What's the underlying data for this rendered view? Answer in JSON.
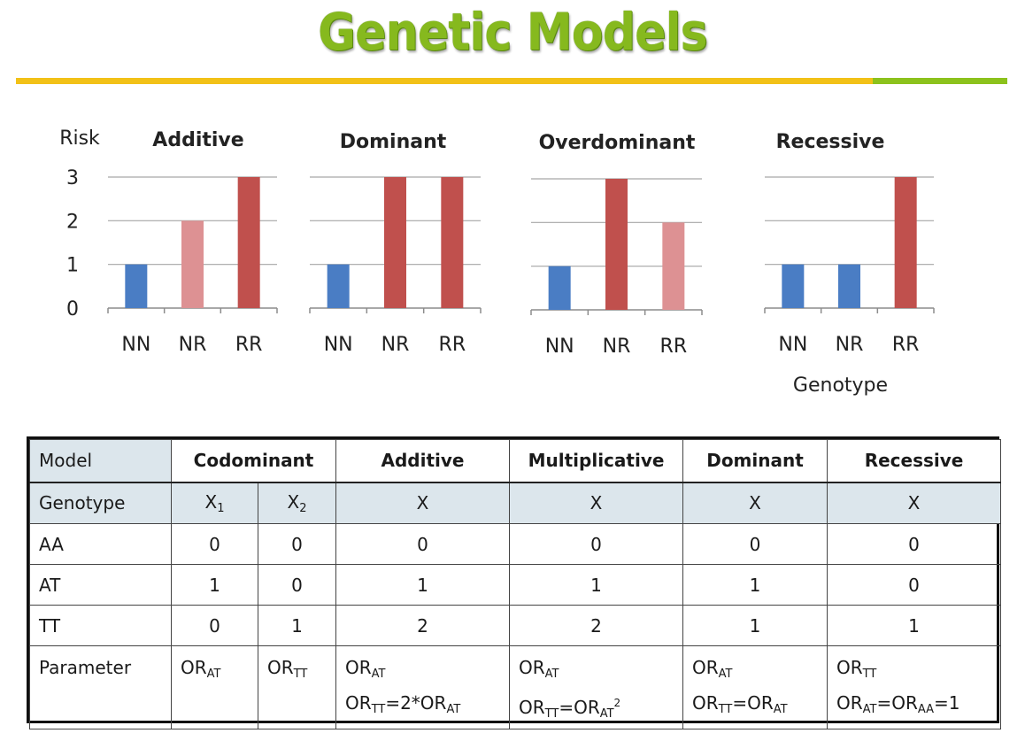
{
  "title": "Genetic Models",
  "colors": {
    "title_green": "#86b91e",
    "rule_yellow": "#f2c117",
    "rule_green": "#8cc21c",
    "bar_blue": "#4a7dc4",
    "bar_red": "#c0504d",
    "bar_pink": "#dd9193"
  },
  "chart_data": [
    {
      "type": "bar",
      "title": "Additive",
      "ylabel": "Risk",
      "xlabel": "",
      "categories": [
        "NN",
        "NR",
        "RR"
      ],
      "values": [
        1,
        2,
        3
      ],
      "colors": [
        "blue",
        "pink",
        "red"
      ],
      "ylim": [
        0,
        3
      ],
      "yticks": [
        "0",
        "1",
        "2",
        "3"
      ],
      "grid": true
    },
    {
      "type": "bar",
      "title": "Dominant",
      "ylabel": "",
      "xlabel": "",
      "categories": [
        "NN",
        "NR",
        "RR"
      ],
      "values": [
        1,
        3,
        3
      ],
      "colors": [
        "blue",
        "red",
        "red"
      ],
      "ylim": [
        0,
        3
      ],
      "grid": true
    },
    {
      "type": "bar",
      "title": "Overdominant",
      "ylabel": "",
      "xlabel": "",
      "categories": [
        "NN",
        "NR",
        "RR"
      ],
      "values": [
        1,
        3,
        2
      ],
      "colors": [
        "blue",
        "red",
        "pink"
      ],
      "ylim": [
        0,
        3
      ],
      "grid": true
    },
    {
      "type": "bar",
      "title": "Recessive",
      "ylabel": "",
      "xlabel": "Genotype",
      "categories": [
        "NN",
        "NR",
        "RR"
      ],
      "values": [
        1,
        1,
        3
      ],
      "colors": [
        "blue",
        "blue",
        "red"
      ],
      "ylim": [
        0,
        3
      ],
      "grid": true
    }
  ],
  "table": {
    "model_label": "Model",
    "model_headers": [
      "Codominant",
      "Additive",
      "Multiplicative",
      "Dominant",
      "Recessive"
    ],
    "genotype_label": "Genotype",
    "genotype_cells": [
      {
        "base": "X",
        "sub": "1"
      },
      {
        "base": "X",
        "sub": "2"
      },
      {
        "base": "X",
        "sub": ""
      },
      {
        "base": "X",
        "sub": ""
      },
      {
        "base": "X",
        "sub": ""
      },
      {
        "base": "X",
        "sub": ""
      }
    ],
    "rows": [
      {
        "label": "AA",
        "values": [
          "0",
          "0",
          "0",
          "0",
          "0",
          "0"
        ]
      },
      {
        "label": "AT",
        "values": [
          "1",
          "0",
          "1",
          "1",
          "1",
          "0"
        ]
      },
      {
        "label": "TT",
        "values": [
          "0",
          "1",
          "2",
          "2",
          "1",
          "1"
        ]
      }
    ],
    "parameter_label": "Parameter",
    "parameters": [
      [
        [
          {
            "t": "OR"
          },
          {
            "sub": "AT"
          }
        ]
      ],
      [
        [
          {
            "t": "OR"
          },
          {
            "sub": "TT"
          }
        ]
      ],
      [
        [
          {
            "t": "OR"
          },
          {
            "sub": "AT"
          }
        ],
        [
          {
            "t": "OR"
          },
          {
            "sub": "TT"
          },
          {
            "t": "=2*OR"
          },
          {
            "sub": "AT"
          }
        ]
      ],
      [
        [
          {
            "t": "OR"
          },
          {
            "sub": "AT"
          }
        ],
        [
          {
            "t": "OR"
          },
          {
            "sub": "TT"
          },
          {
            "t": "=OR"
          },
          {
            "sub": "AT"
          },
          {
            "sup": "2"
          }
        ]
      ],
      [
        [
          {
            "t": "OR"
          },
          {
            "sub": "AT"
          }
        ],
        [
          {
            "t": "OR"
          },
          {
            "sub": "TT"
          },
          {
            "t": "=OR"
          },
          {
            "sub": "AT"
          }
        ]
      ],
      [
        [
          {
            "t": "OR"
          },
          {
            "sub": "TT"
          }
        ],
        [
          {
            "t": "OR"
          },
          {
            "sub": "AT"
          },
          {
            "t": "=OR"
          },
          {
            "sub": "AA"
          },
          {
            "t": "=1"
          }
        ]
      ]
    ]
  }
}
